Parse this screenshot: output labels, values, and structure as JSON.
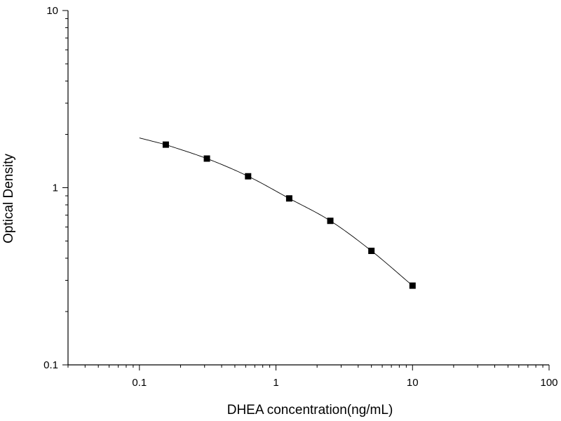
{
  "chart_data": {
    "type": "scatter",
    "title": "",
    "xlabel": "DHEA concentration(ng/mL)",
    "ylabel": "Optical Density",
    "x_scale": "log",
    "y_scale": "log",
    "xlim": [
      0.03,
      100
    ],
    "ylim": [
      0.1,
      10
    ],
    "x_ticks": [
      {
        "value": 0.1,
        "label": "0.1"
      },
      {
        "value": 1,
        "label": "1"
      },
      {
        "value": 10,
        "label": "10"
      },
      {
        "value": 100,
        "label": "100"
      }
    ],
    "y_ticks": [
      {
        "value": 0.1,
        "label": "0.1"
      },
      {
        "value": 1,
        "label": "1"
      },
      {
        "value": 10,
        "label": "10"
      }
    ],
    "grid": false,
    "legend": "none",
    "series": [
      {
        "marker": "square",
        "color": "#000000",
        "x": [
          0.156,
          0.312,
          0.625,
          1.25,
          2.5,
          5,
          10
        ],
        "y": [
          1.75,
          1.46,
          1.16,
          0.87,
          0.65,
          0.44,
          0.28
        ]
      }
    ],
    "fit_curve": {
      "type": "four-parameter logistic",
      "color": "#000000",
      "x_range": [
        0.1,
        10
      ]
    }
  }
}
